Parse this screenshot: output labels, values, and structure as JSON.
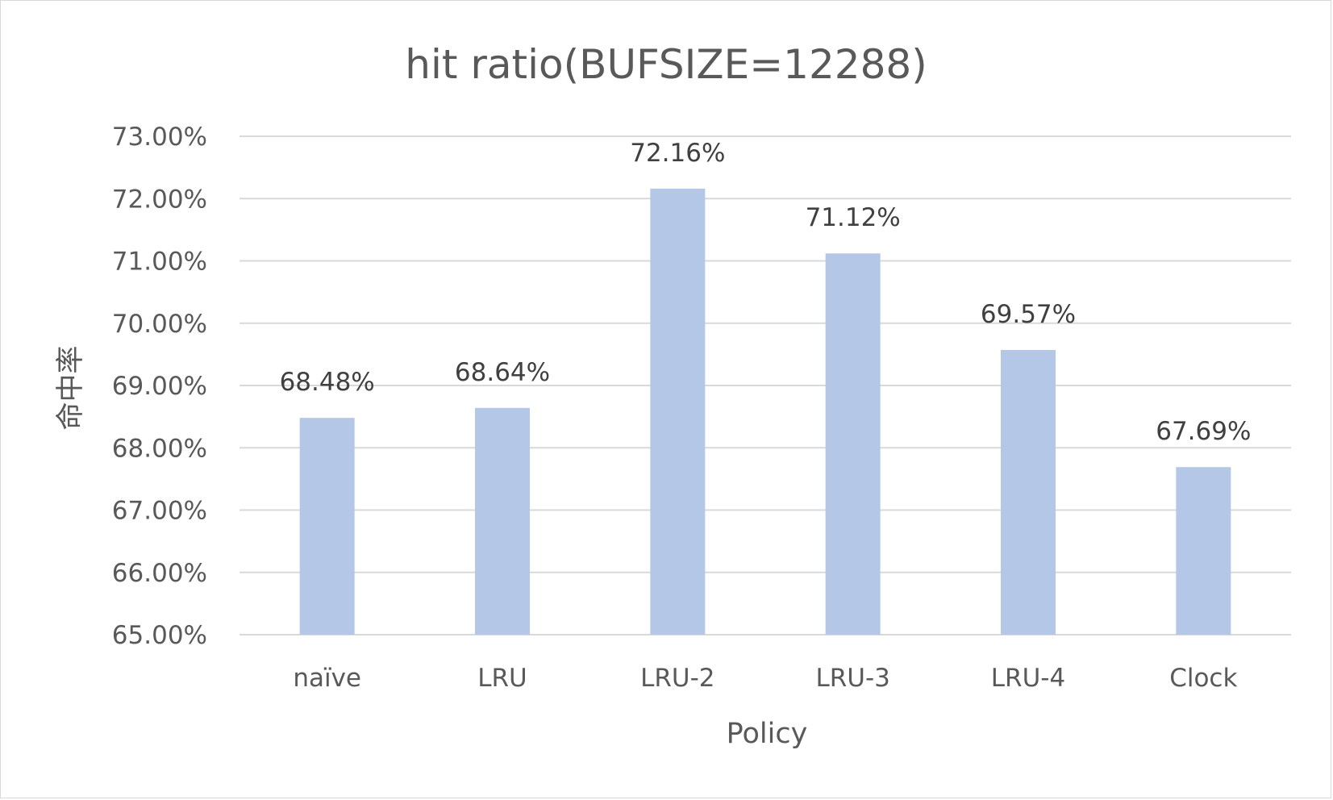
{
  "chart_data": {
    "type": "bar",
    "title": "hit ratio(BUFSIZE=12288)",
    "xlabel": "Policy",
    "ylabel": "命中率",
    "categories": [
      "naïve",
      "LRU",
      "LRU-2",
      "LRU-3",
      "LRU-4",
      "Clock"
    ],
    "values": [
      68.48,
      68.64,
      72.16,
      71.12,
      69.57,
      67.69
    ],
    "data_labels": [
      "68.48%",
      "68.64%",
      "72.16%",
      "71.12%",
      "69.57%",
      "67.69%"
    ],
    "ylim": [
      65,
      73
    ],
    "yticks": [
      65,
      66,
      67,
      68,
      69,
      70,
      71,
      72,
      73
    ],
    "ytick_labels": [
      "65.00%",
      "66.00%",
      "67.00%",
      "68.00%",
      "69.00%",
      "70.00%",
      "71.00%",
      "72.00%",
      "73.00%"
    ],
    "grid": true,
    "legend": "none",
    "bar_color": "#b4c7e7"
  }
}
